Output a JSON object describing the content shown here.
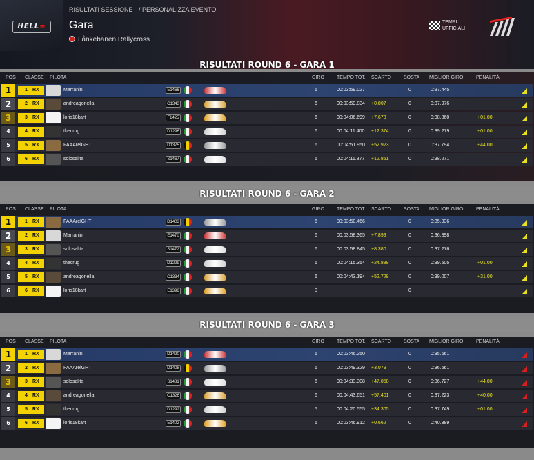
{
  "header": {
    "logo_text": "HELL",
    "breadcrumb": [
      "RISULTATI SESSIONE",
      "/ PERSONALIZZA EVENTO"
    ],
    "title": "Gara",
    "venue": "Lånkebanen Rallycross",
    "official_times": [
      "TEMPI",
      "UFFICIALI"
    ]
  },
  "columns": {
    "pos": "POS",
    "classe": "CLASSE",
    "pilota": "PILOTA",
    "giro": "GIRO",
    "tempo": "TEMPO TOT.",
    "scarto": "SCARTO",
    "sosta": "SOSTA",
    "miglior": "MIGLIOR GIRO",
    "penalita": "PENALITÀ"
  },
  "races": [
    {
      "title": "RISULTATI ROUND 6 - GARA 1",
      "rows": [
        {
          "pos": "1",
          "cls": "1",
          "rx": "RX",
          "name": "Marranini",
          "num": "E1466",
          "flag": "ita",
          "giro": "6",
          "tempo": "00:03:59.027",
          "scarto": "",
          "sosta": "0",
          "best": "0:37.445",
          "pen": "",
          "avatar": "#d8d8d8",
          "car": "#c33"
        },
        {
          "pos": "2",
          "cls": "2",
          "rx": "RX",
          "name": "andreagonella",
          "num": "C1343",
          "flag": "ita",
          "giro": "6",
          "tempo": "00:03:59.834",
          "scarto": "+0.807",
          "sosta": "0",
          "best": "0:37.976",
          "pen": "",
          "avatar": "#5a4a3a",
          "car": "#d8a030"
        },
        {
          "pos": "3",
          "cls": "3",
          "rx": "RX",
          "name": "loris18kart",
          "num": "F1425",
          "flag": "ita",
          "giro": "6",
          "tempo": "00:04:06.699",
          "scarto": "+7.673",
          "sosta": "0",
          "best": "0:38.860",
          "pen": "+01.00",
          "avatar": "#f4f4f4",
          "car": "#e0a020"
        },
        {
          "pos": "4",
          "cls": "4",
          "rx": "RX",
          "name": "thecrug",
          "num": "D1296",
          "flag": "ita",
          "giro": "6",
          "tempo": "00:04:11.400",
          "scarto": "+12.374",
          "sosta": "0",
          "best": "0:39.279",
          "pen": "+01.00",
          "avatar": "#333",
          "car": "#d0d0d0"
        },
        {
          "pos": "5",
          "cls": "5",
          "rx": "RX",
          "name": "FAAArelGHT",
          "num": "D1375",
          "flag": "bel",
          "giro": "6",
          "tempo": "00:04:51.950",
          "scarto": "+52.923",
          "sosta": "0",
          "best": "0:37.794",
          "pen": "+44.00",
          "avatar": "#8a6a40",
          "car": "#9a9a9a"
        },
        {
          "pos": "6",
          "cls": "6",
          "rx": "RX",
          "name": "solosalita",
          "num": "S1467",
          "flag": "ita",
          "giro": "5",
          "tempo": "00:04:11.877",
          "scarto": "+12.851",
          "sosta": "0",
          "best": "0:38.271",
          "pen": "",
          "avatar": "#555",
          "car": "#ddd"
        }
      ]
    },
    {
      "title": "RISULTATI ROUND 6 - GARA 2",
      "rows": [
        {
          "pos": "1",
          "cls": "1",
          "rx": "RX",
          "name": "FAAArelGHT",
          "num": "D1403",
          "flag": "bel",
          "giro": "6",
          "tempo": "00:03:50.466",
          "scarto": "",
          "sosta": "0",
          "best": "0:35.936",
          "pen": "",
          "avatar": "#8a6a40",
          "car": "#9a9a9a"
        },
        {
          "pos": "2",
          "cls": "2",
          "rx": "RX",
          "name": "Marranini",
          "num": "E1470",
          "flag": "ita",
          "giro": "6",
          "tempo": "00:03:58.365",
          "scarto": "+7.899",
          "sosta": "0",
          "best": "0:36.898",
          "pen": "",
          "avatar": "#d8d8d8",
          "car": "#c33"
        },
        {
          "pos": "3",
          "cls": "3",
          "rx": "RX",
          "name": "solosalita",
          "num": "S1472",
          "flag": "ita",
          "giro": "6",
          "tempo": "00:03:58.845",
          "scarto": "+8.380",
          "sosta": "0",
          "best": "0:37.276",
          "pen": "",
          "avatar": "#555",
          "car": "#ddd"
        },
        {
          "pos": "4",
          "cls": "4",
          "rx": "RX",
          "name": "thecrug",
          "num": "D1299",
          "flag": "ita",
          "giro": "6",
          "tempo": "00:04:15.354",
          "scarto": "+24.888",
          "sosta": "0",
          "best": "0:39.505",
          "pen": "+01.00",
          "avatar": "#333",
          "car": "#d0d0d0"
        },
        {
          "pos": "5",
          "cls": "5",
          "rx": "RX",
          "name": "andreagonella",
          "num": "C1334",
          "flag": "ita",
          "giro": "6",
          "tempo": "00:04:43.194",
          "scarto": "+52.728",
          "sosta": "0",
          "best": "0:39.007",
          "pen": "+31.00",
          "avatar": "#5a4a3a",
          "car": "#d8a030"
        },
        {
          "pos": "6",
          "cls": "6",
          "rx": "RX",
          "name": "loris18kart",
          "num": "E1396",
          "flag": "ita",
          "giro": "0",
          "tempo": "",
          "scarto": "",
          "sosta": "0",
          "best": "",
          "pen": "",
          "avatar": "#f4f4f4",
          "car": "#e0a020"
        }
      ]
    },
    {
      "title": "RISULTATI ROUND 6 - GARA 3",
      "rows": [
        {
          "pos": "1",
          "cls": "1",
          "rx": "RX",
          "name": "Marranini",
          "num": "D1490",
          "flag": "ita",
          "giro": "6",
          "tempo": "00:03:46.250",
          "scarto": "",
          "sosta": "0",
          "best": "0:35.661",
          "pen": "",
          "avatar": "#d8d8d8",
          "car": "#c33"
        },
        {
          "pos": "2",
          "cls": "2",
          "rx": "RX",
          "name": "FAAArelGHT",
          "num": "D1408",
          "flag": "bel",
          "giro": "6",
          "tempo": "00:03:49.329",
          "scarto": "+3.079",
          "sosta": "0",
          "best": "0:36.661",
          "pen": "",
          "avatar": "#8a6a40",
          "car": "#9a9a9a"
        },
        {
          "pos": "3",
          "cls": "3",
          "rx": "RX",
          "name": "solosalita",
          "num": "S1481",
          "flag": "ita",
          "giro": "6",
          "tempo": "00:04:33.308",
          "scarto": "+47.058",
          "sosta": "0",
          "best": "0:36.727",
          "pen": "+44.00",
          "avatar": "#555",
          "car": "#ddd"
        },
        {
          "pos": "4",
          "cls": "4",
          "rx": "RX",
          "name": "andreagonella",
          "num": "C1326",
          "flag": "ita",
          "giro": "6",
          "tempo": "00:04:43.651",
          "scarto": "+57.401",
          "sosta": "0",
          "best": "0:37.223",
          "pen": "+40.00",
          "avatar": "#5a4a3a",
          "car": "#d8a030"
        },
        {
          "pos": "5",
          "cls": "5",
          "rx": "RX",
          "name": "thecrug",
          "num": "D1292",
          "flag": "ita",
          "giro": "5",
          "tempo": "00:04:20.555",
          "scarto": "+34.305",
          "sosta": "0",
          "best": "0:37.749",
          "pen": "+01.00",
          "avatar": "#333",
          "car": "#d0d0d0"
        },
        {
          "pos": "6",
          "cls": "6",
          "rx": "RX",
          "name": "loris18kart",
          "num": "E1402",
          "flag": "ita",
          "giro": "5",
          "tempo": "00:03:46.912",
          "scarto": "+0.662",
          "sosta": "0",
          "best": "0:40.389",
          "pen": "",
          "avatar": "#f4f4f4",
          "car": "#e0a020"
        }
      ]
    }
  ]
}
